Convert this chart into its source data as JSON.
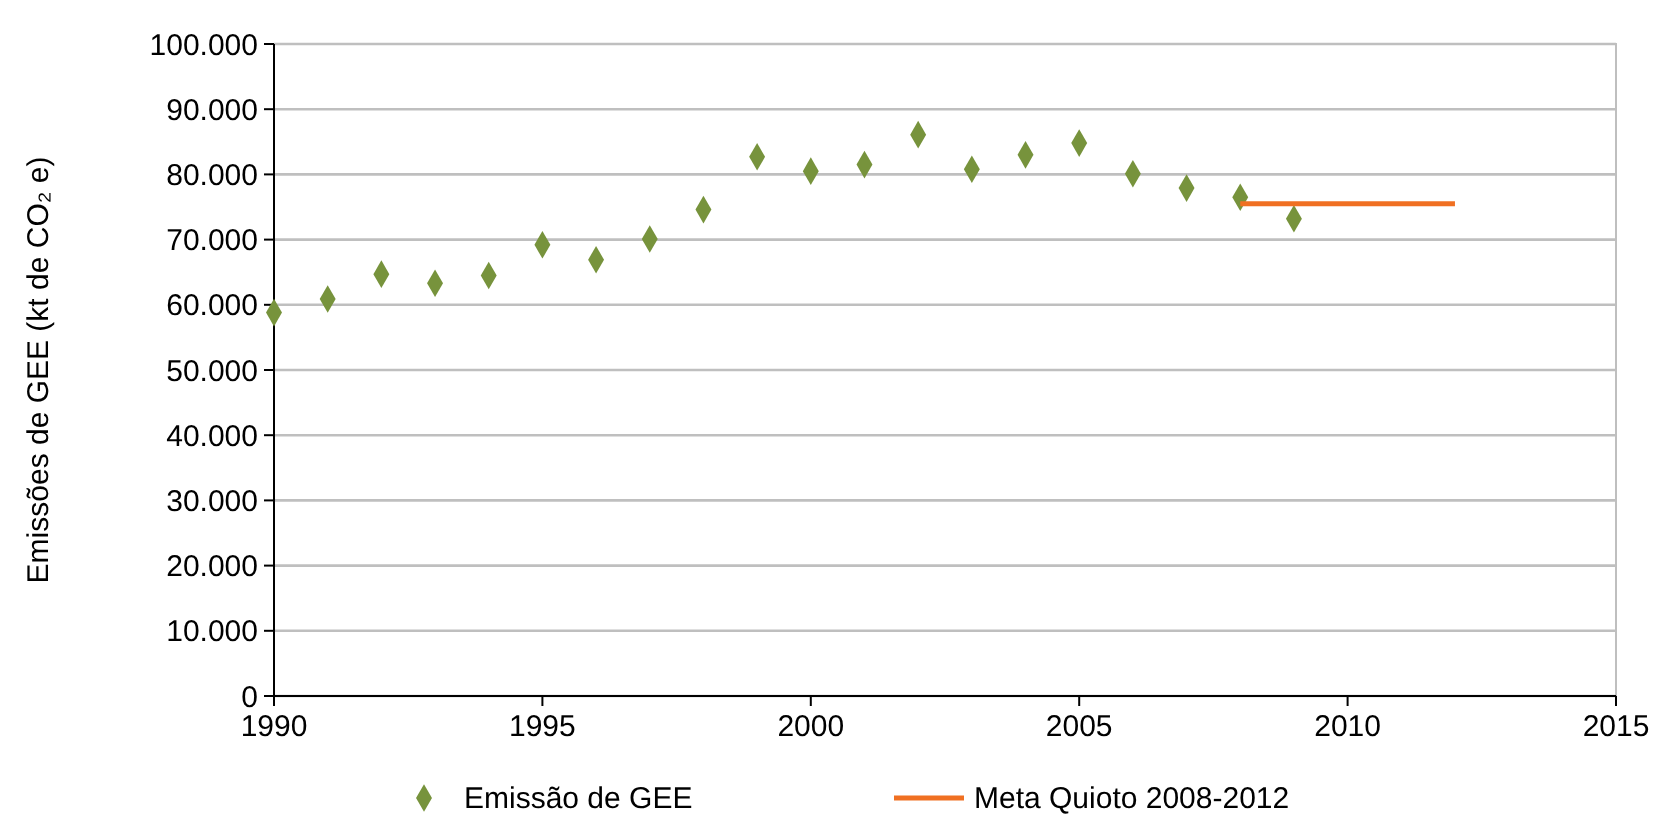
{
  "chart_data": {
    "type": "scatter",
    "ylabel": "Emissões de GEE (kt de CO₂ e)",
    "xlim": [
      1990,
      2015
    ],
    "xticks": [
      1990,
      1995,
      2000,
      2005,
      2010,
      2015
    ],
    "ylim": [
      0,
      100000
    ],
    "yticks": [
      {
        "value": 0,
        "label": "0"
      },
      {
        "value": 10000,
        "label": "10.000"
      },
      {
        "value": 20000,
        "label": "20.000"
      },
      {
        "value": 30000,
        "label": "30.000"
      },
      {
        "value": 40000,
        "label": "40.000"
      },
      {
        "value": 50000,
        "label": "50.000"
      },
      {
        "value": 60000,
        "label": "60.000"
      },
      {
        "value": 70000,
        "label": "70.000"
      },
      {
        "value": 80000,
        "label": "80.000"
      },
      {
        "value": 90000,
        "label": "90.000"
      },
      {
        "value": 100000,
        "label": "100.000"
      }
    ],
    "grid": "y",
    "legend": "bottom",
    "series": [
      {
        "name": "Emissão de GEE",
        "marker": "diamond",
        "color": "#77933c",
        "x": [
          1990,
          1991,
          1992,
          1993,
          1994,
          1995,
          1996,
          1997,
          1998,
          1999,
          2000,
          2001,
          2002,
          2003,
          2004,
          2005,
          2006,
          2007,
          2008,
          2009
        ],
        "values": [
          58800,
          60900,
          64700,
          63300,
          64500,
          69200,
          66900,
          70100,
          74600,
          82700,
          80500,
          81500,
          86100,
          80800,
          83000,
          84800,
          80100,
          77900,
          76500,
          73200
        ]
      },
      {
        "name": "Meta Quioto 2008-2012",
        "type": "line",
        "color": "#f07022",
        "x": [
          2008,
          2012
        ],
        "values": [
          75500,
          75500
        ]
      }
    ]
  }
}
